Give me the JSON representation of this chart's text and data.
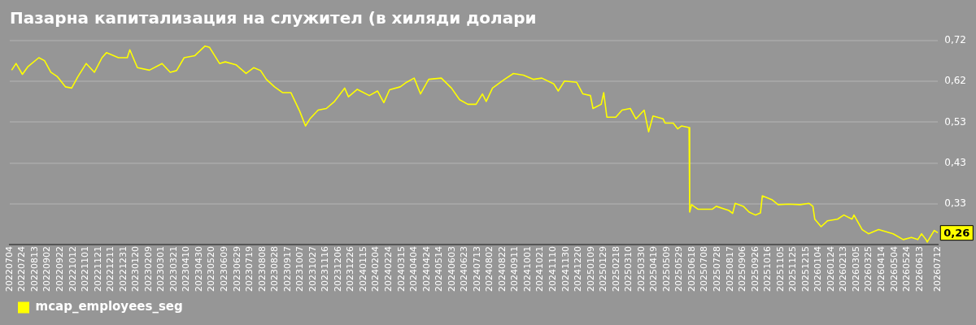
{
  "chart_data": {
    "type": "line",
    "title": "Пазарна капитализация на служител (в хиляди долари",
    "x": [
      "2022-07-07",
      "2022-07-14",
      "2022-07-24",
      "2022-08-02",
      "2022-08-19",
      "2022-08-28",
      "2022-09-07",
      "2022-09-17",
      "2022-09-30",
      "2022-10-10",
      "2022-10-20",
      "2022-11-02",
      "2022-11-15",
      "2022-11-27",
      "2022-12-04",
      "2022-12-23",
      "2023-01-06",
      "2023-01-10",
      "2023-01-22",
      "2023-02-10",
      "2023-03-02",
      "2023-03-15",
      "2023-03-25",
      "2023-04-06",
      "2023-04-23",
      "2023-05-09",
      "2023-05-16",
      "2023-06-01",
      "2023-06-10",
      "2023-06-27",
      "2023-07-13",
      "2023-07-25",
      "2023-08-05",
      "2023-08-14",
      "2023-08-27",
      "2023-09-09",
      "2023-09-22",
      "2023-10-06",
      "2023-10-15",
      "2023-10-22",
      "2023-11-04",
      "2023-11-17",
      "2023-11-30",
      "2023-12-16",
      "2023-12-22",
      "2024-01-05",
      "2024-01-24",
      "2024-02-06",
      "2024-02-16",
      "2024-02-25",
      "2024-03-13",
      "2024-03-23",
      "2024-04-04",
      "2024-04-14",
      "2024-04-27",
      "2024-05-17",
      "2024-06-02",
      "2024-06-15",
      "2024-06-28",
      "2024-07-11",
      "2024-07-21",
      "2024-07-27",
      "2024-08-06",
      "2024-08-25",
      "2024-09-08",
      "2024-09-24",
      "2024-10-10",
      "2024-10-23",
      "2024-11-11",
      "2024-11-18",
      "2024-11-28",
      "2024-12-17",
      "2024-12-27",
      "2025-01-08",
      "2025-01-12",
      "2025-01-25",
      "2025-01-29",
      "2025-02-03",
      "2025-02-17",
      "2025-02-27",
      "2025-03-12",
      "2025-03-21",
      "2025-04-03",
      "2025-04-10",
      "2025-04-17",
      "2025-05-03",
      "2025-05-06",
      "2025-05-19",
      "2025-05-26",
      "2025-06-01",
      "2025-06-13",
      "2025-06-14",
      "2025-06-17",
      "2025-06-27",
      "2025-07-20",
      "2025-07-26",
      "2025-08-15",
      "2025-08-21",
      "2025-08-25",
      "2025-09-07",
      "2025-09-16",
      "2025-09-26",
      "2025-10-04",
      "2025-10-07",
      "2025-10-22",
      "2025-11-01",
      "2025-11-17",
      "2025-12-06",
      "2025-12-20",
      "2025-12-26",
      "2025-12-29",
      "2026-01-08",
      "2026-01-18",
      "2026-02-03",
      "2026-02-13",
      "2026-02-26",
      "2026-03-01",
      "2026-03-14",
      "2026-03-24",
      "2026-04-09",
      "2026-05-02",
      "2026-05-18",
      "2026-05-31",
      "2026-06-10",
      "2026-06-16",
      "2026-06-23",
      "2026-06-25",
      "2026-07-06",
      "2026-07-12"
    ],
    "series": [
      {
        "name": "mcap_employees_seg",
        "color": "#ffff00",
        "values": [
          0.651,
          0.667,
          0.641,
          0.66,
          0.681,
          0.674,
          0.646,
          0.636,
          0.611,
          0.608,
          0.636,
          0.667,
          0.646,
          0.681,
          0.693,
          0.681,
          0.681,
          0.7,
          0.657,
          0.651,
          0.667,
          0.646,
          0.65,
          0.681,
          0.686,
          0.709,
          0.706,
          0.667,
          0.671,
          0.664,
          0.643,
          0.657,
          0.65,
          0.629,
          0.611,
          0.597,
          0.597,
          0.552,
          0.517,
          0.534,
          0.555,
          0.559,
          0.576,
          0.608,
          0.587,
          0.605,
          0.59,
          0.601,
          0.573,
          0.604,
          0.611,
          0.622,
          0.632,
          0.594,
          0.629,
          0.632,
          0.608,
          0.58,
          0.569,
          0.569,
          0.594,
          0.576,
          0.608,
          0.629,
          0.643,
          0.639,
          0.629,
          0.632,
          0.618,
          0.601,
          0.625,
          0.622,
          0.594,
          0.59,
          0.559,
          0.569,
          0.597,
          0.538,
          0.538,
          0.555,
          0.559,
          0.534,
          0.555,
          0.503,
          0.541,
          0.534,
          0.524,
          0.524,
          0.51,
          0.517,
          0.513,
          0.31,
          0.328,
          0.317,
          0.317,
          0.324,
          0.314,
          0.307,
          0.331,
          0.324,
          0.31,
          0.303,
          0.308,
          0.349,
          0.34,
          0.328,
          0.329,
          0.328,
          0.331,
          0.324,
          0.293,
          0.275,
          0.289,
          0.293,
          0.303,
          0.293,
          0.303,
          0.268,
          0.258,
          0.268,
          0.258,
          0.244,
          0.249,
          0.244,
          0.258,
          0.244,
          0.238,
          0.266,
          0.26
        ]
      }
    ],
    "xlim": [
      "2022-07-04",
      "2026-07-12"
    ],
    "xticks": [
      {
        "value": "2022-07-04",
        "label": "20220704"
      },
      {
        "value": "2022-07-24",
        "label": "20220724"
      },
      {
        "value": "2022-08-13",
        "label": "20220813"
      },
      {
        "value": "2022-09-02",
        "label": "20220902"
      },
      {
        "value": "2022-09-22",
        "label": "20220922"
      },
      {
        "value": "2022-10-12",
        "label": "20221012"
      },
      {
        "value": "2022-11-01",
        "label": "20221101"
      },
      {
        "value": "2022-11-21",
        "label": "20221121"
      },
      {
        "value": "2022-12-11",
        "label": "20221211"
      },
      {
        "value": "2022-12-31",
        "label": "20221231"
      },
      {
        "value": "2023-01-20",
        "label": "20230120"
      },
      {
        "value": "2023-02-09",
        "label": "20230209"
      },
      {
        "value": "2023-03-01",
        "label": "20230301"
      },
      {
        "value": "2023-03-21",
        "label": "20230321"
      },
      {
        "value": "2023-04-10",
        "label": "20230410"
      },
      {
        "value": "2023-04-30",
        "label": "20230430"
      },
      {
        "value": "2023-05-20",
        "label": "20230520"
      },
      {
        "value": "2023-06-09",
        "label": "20230609"
      },
      {
        "value": "2023-06-29",
        "label": "20230629"
      },
      {
        "value": "2023-07-19",
        "label": "20230719"
      },
      {
        "value": "2023-08-08",
        "label": "20230808"
      },
      {
        "value": "2023-08-28",
        "label": "20230828"
      },
      {
        "value": "2023-09-17",
        "label": "20230917"
      },
      {
        "value": "2023-10-07",
        "label": "20231007"
      },
      {
        "value": "2023-10-27",
        "label": "20231027"
      },
      {
        "value": "2023-11-16",
        "label": "20231116"
      },
      {
        "value": "2023-12-06",
        "label": "20231206"
      },
      {
        "value": "2023-12-26",
        "label": "20231226"
      },
      {
        "value": "2024-01-15",
        "label": "20240115"
      },
      {
        "value": "2024-02-04",
        "label": "20240204"
      },
      {
        "value": "2024-02-24",
        "label": "20240224"
      },
      {
        "value": "2024-03-15",
        "label": "20240315"
      },
      {
        "value": "2024-04-04",
        "label": "20240404"
      },
      {
        "value": "2024-04-24",
        "label": "20240424"
      },
      {
        "value": "2024-05-14",
        "label": "20240514"
      },
      {
        "value": "2024-06-03",
        "label": "20240603"
      },
      {
        "value": "2024-06-23",
        "label": "20240623"
      },
      {
        "value": "2024-07-13",
        "label": "20240713"
      },
      {
        "value": "2024-08-02",
        "label": "20240802"
      },
      {
        "value": "2024-08-22",
        "label": "20240822"
      },
      {
        "value": "2024-09-11",
        "label": "20240911"
      },
      {
        "value": "2024-10-01",
        "label": "20241001"
      },
      {
        "value": "2024-10-21",
        "label": "20241021"
      },
      {
        "value": "2024-11-10",
        "label": "20241110"
      },
      {
        "value": "2024-11-30",
        "label": "20241130"
      },
      {
        "value": "2024-12-20",
        "label": "20241220"
      },
      {
        "value": "2025-01-09",
        "label": "20250109"
      },
      {
        "value": "2025-01-29",
        "label": "20250129"
      },
      {
        "value": "2025-02-18",
        "label": "20250218"
      },
      {
        "value": "2025-03-10",
        "label": "20250310"
      },
      {
        "value": "2025-03-30",
        "label": "20250330"
      },
      {
        "value": "2025-04-19",
        "label": "20250419"
      },
      {
        "value": "2025-05-09",
        "label": "20250509"
      },
      {
        "value": "2025-05-29",
        "label": "20250529"
      },
      {
        "value": "2025-06-18",
        "label": "20250618"
      },
      {
        "value": "2025-07-08",
        "label": "20250708"
      },
      {
        "value": "2025-07-28",
        "label": "20250728"
      },
      {
        "value": "2025-08-17",
        "label": "20250817"
      },
      {
        "value": "2025-09-06",
        "label": "20250906"
      },
      {
        "value": "2025-09-26",
        "label": "20250926"
      },
      {
        "value": "2025-10-16",
        "label": "20251016"
      },
      {
        "value": "2025-11-05",
        "label": "20251105"
      },
      {
        "value": "2025-11-25",
        "label": "20251125"
      },
      {
        "value": "2025-12-15",
        "label": "20251215"
      },
      {
        "value": "2026-01-04",
        "label": "20260104"
      },
      {
        "value": "2026-01-24",
        "label": "20260124"
      },
      {
        "value": "2026-02-13",
        "label": "20260213"
      },
      {
        "value": "2026-03-05",
        "label": "20260305"
      },
      {
        "value": "2026-03-25",
        "label": "20260325"
      },
      {
        "value": "2026-04-14",
        "label": "20260414"
      },
      {
        "value": "2026-05-04",
        "label": "20260504"
      },
      {
        "value": "2026-05-24",
        "label": "20260524"
      },
      {
        "value": "2026-06-13",
        "label": "20260613"
      },
      {
        "value": "2026-07-12",
        "label": "20260712"
      }
    ],
    "ylim": [
      0.232,
      0.722
    ],
    "yticks": [
      {
        "value": 0.33,
        "label": "0,33"
      },
      {
        "value": 0.428,
        "label": "0,43"
      },
      {
        "value": 0.526,
        "label": "0,53"
      },
      {
        "value": 0.624,
        "label": "0,62"
      },
      {
        "value": 0.722,
        "label": "0,72"
      }
    ],
    "annotations": [
      {
        "text": "0,26",
        "x": "2026-07-12",
        "y": 0.26
      }
    ],
    "grid": "y",
    "legend": "bottom",
    "marker": "none",
    "line_style": "solid"
  }
}
